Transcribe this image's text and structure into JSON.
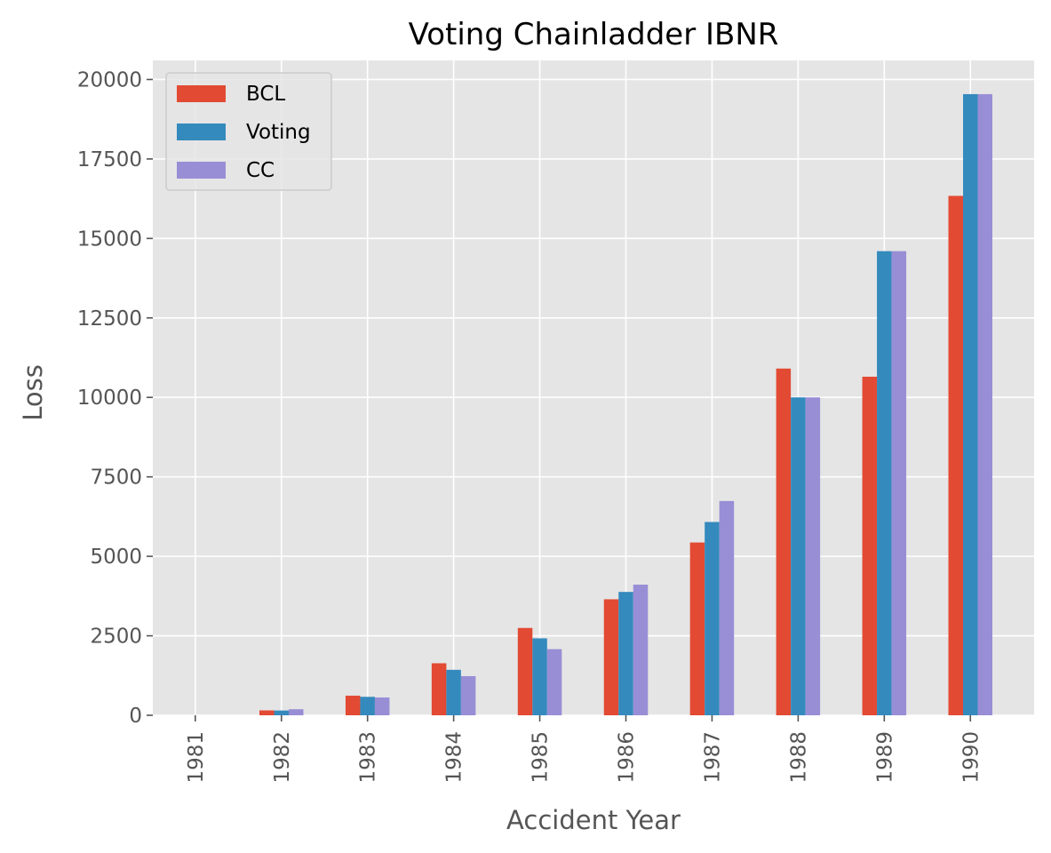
{
  "chart_data": {
    "type": "bar",
    "title": "Voting Chainladder IBNR",
    "xlabel": "Accident Year",
    "ylabel": "Loss",
    "categories": [
      "1981",
      "1982",
      "1983",
      "1984",
      "1985",
      "1986",
      "1987",
      "1988",
      "1989",
      "1990"
    ],
    "series": [
      {
        "name": "BCL",
        "color": "#e24a33",
        "values": [
          0,
          154,
          617,
          1636,
          2747,
          3649,
          5435,
          10907,
          10650,
          16339
        ]
      },
      {
        "name": "Voting",
        "color": "#348abd",
        "values": [
          0,
          150,
          580,
          1430,
          2420,
          3880,
          6080,
          10000,
          14600,
          19540
        ]
      },
      {
        "name": "CC",
        "color": "#988ed5",
        "values": [
          0,
          190,
          560,
          1230,
          2080,
          4110,
          6740,
          10000,
          14600,
          19540
        ]
      }
    ],
    "ylim": [
      0,
      20600
    ],
    "yticks": [
      0,
      2500,
      5000,
      7500,
      10000,
      12500,
      15000,
      17500,
      20000
    ],
    "grid": true,
    "legend_position": "top-left",
    "background_color": "#e5e5e5"
  }
}
